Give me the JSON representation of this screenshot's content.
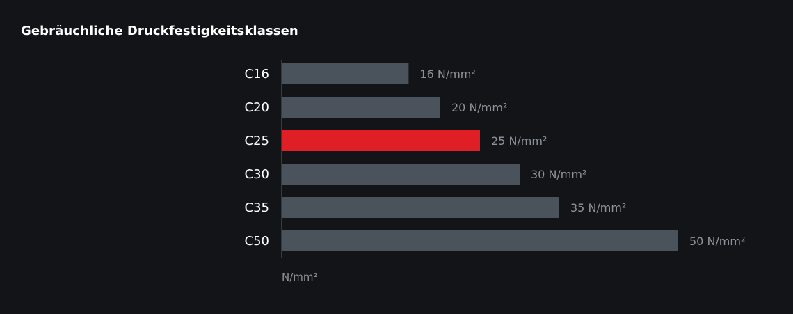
{
  "chart_data": {
    "type": "bar",
    "orientation": "horizontal",
    "title": "Gebräuchliche Druckfestigkeitsklassen",
    "xlabel": "N/mm²",
    "ylabel": "",
    "categories": [
      "C16",
      "C20",
      "C25",
      "C30",
      "C35",
      "C50"
    ],
    "values": [
      16,
      20,
      25,
      30,
      35,
      50
    ],
    "value_labels": [
      "16 N/mm²",
      "20 N/mm²",
      "25 N/mm²",
      "30 N/mm²",
      "35 N/mm²",
      "50 N/mm²"
    ],
    "highlight_category": "C25",
    "xlim": [
      0,
      50
    ],
    "grid": false,
    "colors": {
      "background": "#121418",
      "bar": "#4a525c",
      "highlight": "#e01e26",
      "axis": "#5a5f66",
      "category_text": "#ffffff",
      "value_text": "#8e939b"
    }
  }
}
